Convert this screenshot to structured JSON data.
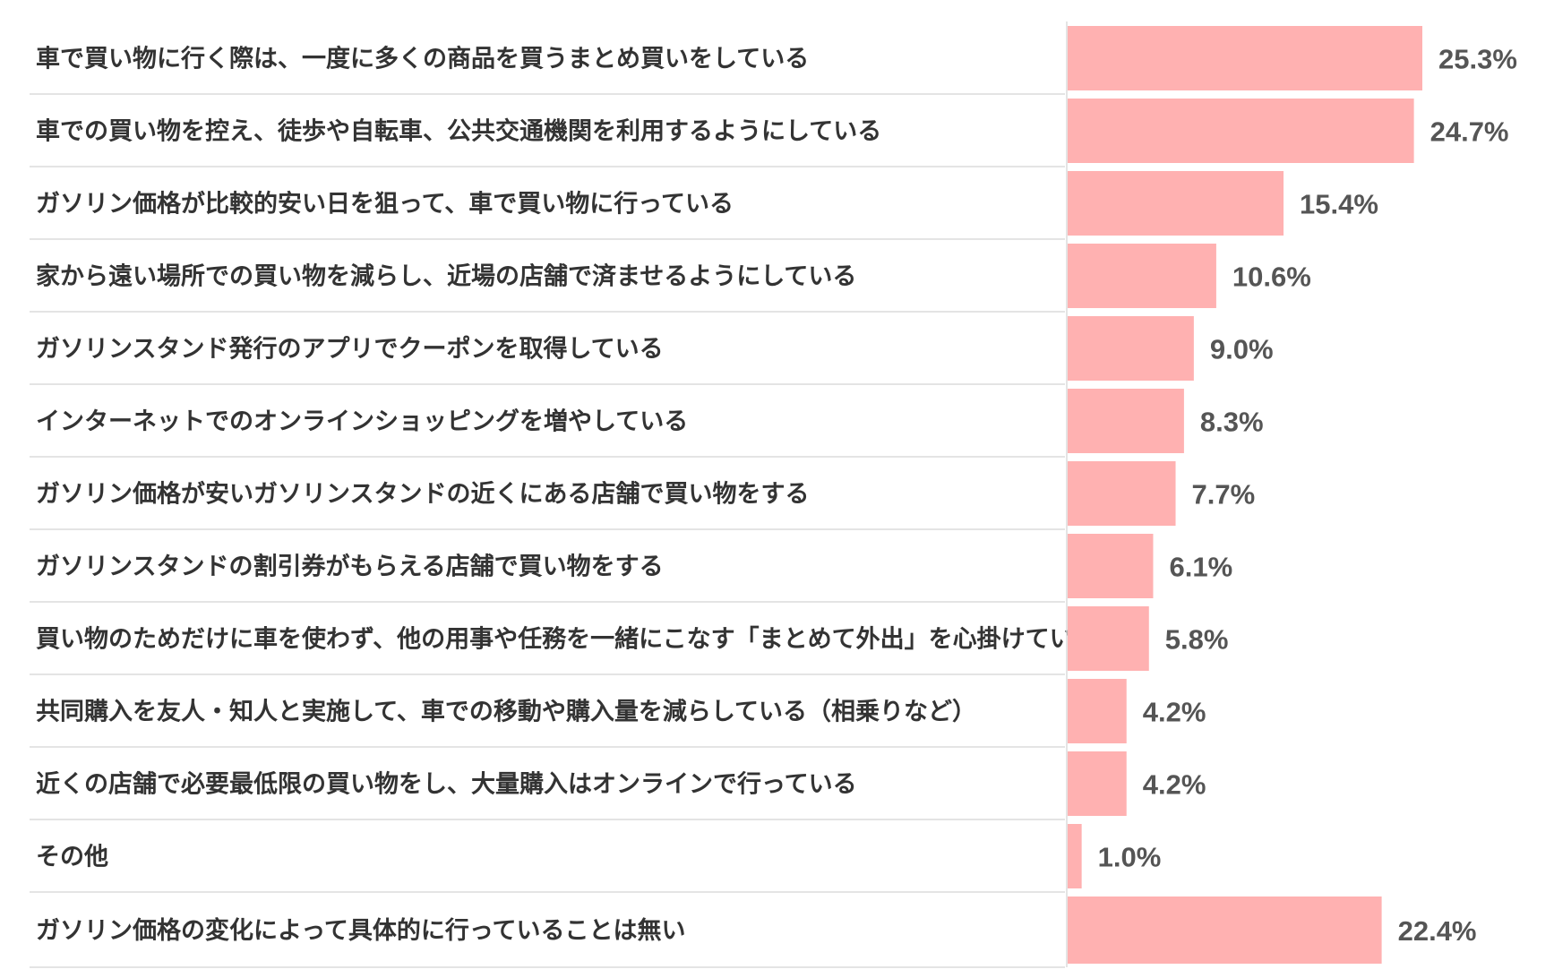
{
  "chart_data": {
    "type": "bar",
    "orientation": "horizontal",
    "categories": [
      "車で買い物に行く際は、一度に多くの商品を買うまとめ買いをしている",
      "車での買い物を控え、徒歩や自転車、公共交通機関を利用するようにしている",
      "ガソリン価格が比較的安い日を狙って、車で買い物に行っている",
      "家から遠い場所での買い物を減らし、近場の店舗で済ませるようにしている",
      "ガソリンスタンド発行のアプリでクーポンを取得している",
      "インターネットでのオンラインショッピングを増やしている",
      "ガソリン価格が安いガソリンスタンドの近くにある店舗で買い物をする",
      "ガソリンスタンドの割引券がもらえる店舗で買い物をする",
      "買い物のためだけに車を使わず、他の用事や任務を一緒にこなす「まとめて外出」を心掛けている",
      "共同購入を友人・知人と実施して、車での移動や購入量を減らしている（相乗りなど）",
      "近くの店舗で必要最低限の買い物をし、大量購入はオンラインで行っている",
      "その他",
      "ガソリン価格の変化によって具体的に行っていることは無い"
    ],
    "values": [
      25.3,
      24.7,
      15.4,
      10.6,
      9.0,
      8.3,
      7.7,
      6.1,
      5.8,
      4.2,
      4.2,
      1.0,
      22.4
    ],
    "value_labels": [
      "25.3%",
      "24.7%",
      "15.4%",
      "10.6%",
      "9.0%",
      "8.3%",
      "7.7%",
      "6.1%",
      "5.8%",
      "4.2%",
      "4.2%",
      "1.0%",
      "22.4%"
    ],
    "unit": "%",
    "xlim": [
      0,
      25.3
    ],
    "bar_color": "#ffb1b1",
    "label_color": "#333333",
    "value_color": "#555555",
    "separator_color": "#dcdcdc",
    "grid": false,
    "legend": "none"
  }
}
